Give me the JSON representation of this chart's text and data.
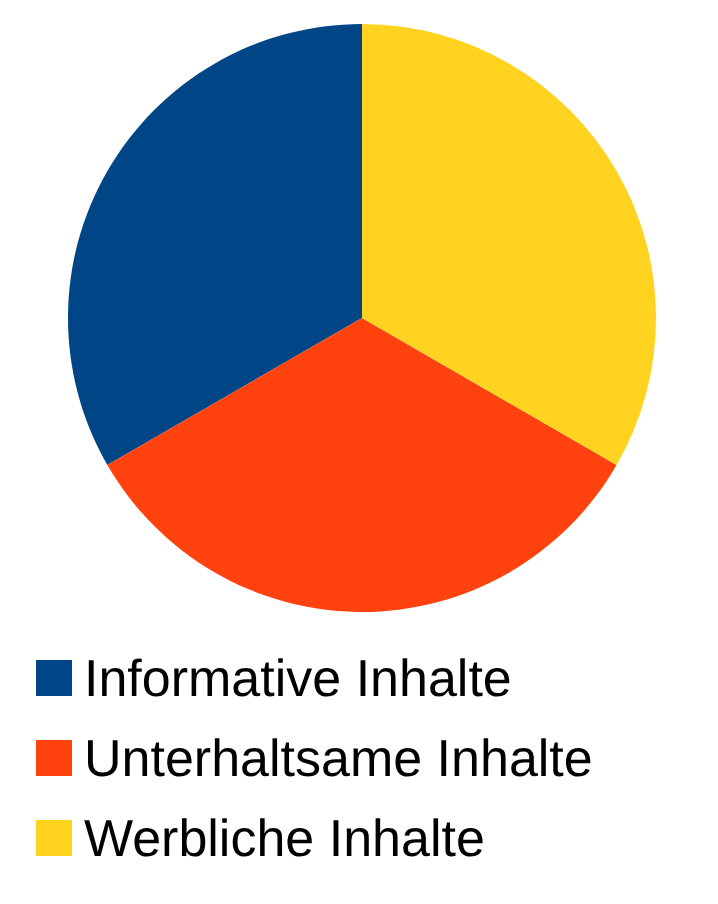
{
  "chart_data": {
    "type": "pie",
    "categories": [
      "Informative Inhalte",
      "Unterhaltsame Inhalte",
      "Werbliche Inhalte"
    ],
    "values": [
      33.33,
      33.33,
      33.34
    ],
    "colors": [
      "#004586",
      "#ff420e",
      "#ffd320"
    ],
    "legend": "bottom"
  }
}
